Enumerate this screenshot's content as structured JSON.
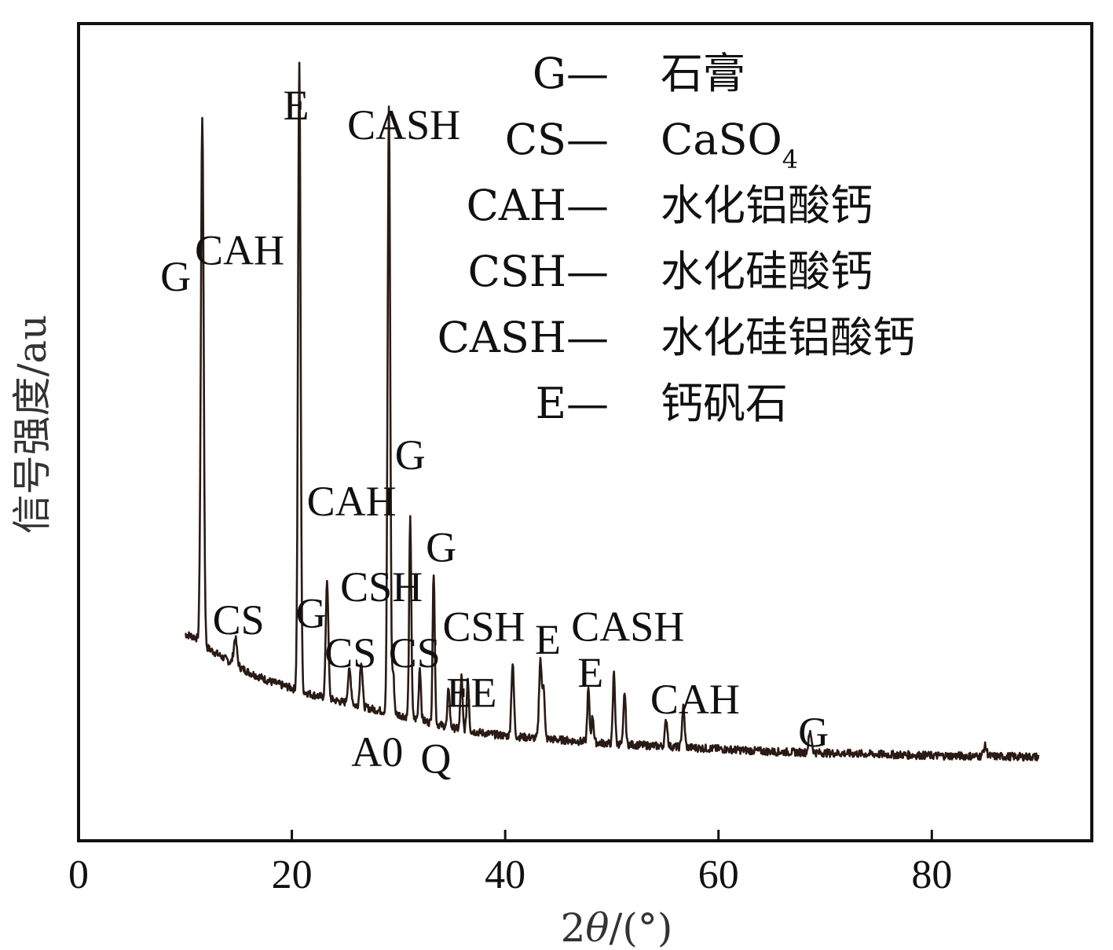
{
  "chart_data": {
    "type": "line",
    "title": "",
    "xlabel_parts": [
      "2",
      "θ",
      "/(°)"
    ],
    "ylabel": "信号强度/au",
    "xlim": [
      0,
      95
    ],
    "xticks": [
      0,
      20,
      40,
      60,
      80
    ],
    "yticks_shown": false,
    "grid": false,
    "line_color": "#2a1a14",
    "baseline": [
      [
        10,
        0.2
      ],
      [
        11,
        0.195
      ],
      [
        12,
        0.18
      ],
      [
        14,
        0.16
      ],
      [
        16,
        0.142
      ],
      [
        18,
        0.128
      ],
      [
        20,
        0.118
      ],
      [
        22,
        0.108
      ],
      [
        24,
        0.1
      ],
      [
        26,
        0.092
      ],
      [
        28,
        0.085
      ],
      [
        30,
        0.078
      ],
      [
        32,
        0.07
      ],
      [
        34,
        0.062
      ],
      [
        36,
        0.055
      ],
      [
        38,
        0.05
      ],
      [
        40,
        0.046
      ],
      [
        45,
        0.04
      ],
      [
        50,
        0.034
      ],
      [
        55,
        0.03
      ],
      [
        60,
        0.026
      ],
      [
        65,
        0.022
      ],
      [
        70,
        0.02
      ],
      [
        75,
        0.018
      ],
      [
        80,
        0.016
      ],
      [
        85,
        0.015
      ],
      [
        90,
        0.014
      ]
    ],
    "peaks": [
      {
        "x": 11.6,
        "h": 0.8,
        "w": 0.13
      },
      {
        "x": 14.7,
        "h": 0.04,
        "w": 0.15
      },
      {
        "x": 20.7,
        "h": 0.95,
        "w": 0.12
      },
      {
        "x": 23.3,
        "h": 0.18,
        "w": 0.12
      },
      {
        "x": 25.4,
        "h": 0.05,
        "w": 0.15
      },
      {
        "x": 26.5,
        "h": 0.07,
        "w": 0.12
      },
      {
        "x": 29.1,
        "h": 0.92,
        "w": 0.12
      },
      {
        "x": 29.5,
        "h": 0.06,
        "w": 0.1
      },
      {
        "x": 31.1,
        "h": 0.3,
        "w": 0.1
      },
      {
        "x": 32.0,
        "h": 0.08,
        "w": 0.1
      },
      {
        "x": 33.3,
        "h": 0.23,
        "w": 0.1
      },
      {
        "x": 34.7,
        "h": 0.06,
        "w": 0.1
      },
      {
        "x": 35.9,
        "h": 0.08,
        "w": 0.1
      },
      {
        "x": 36.5,
        "h": 0.08,
        "w": 0.1
      },
      {
        "x": 40.7,
        "h": 0.11,
        "w": 0.12
      },
      {
        "x": 43.3,
        "h": 0.12,
        "w": 0.12
      },
      {
        "x": 43.6,
        "h": 0.08,
        "w": 0.1
      },
      {
        "x": 47.8,
        "h": 0.08,
        "w": 0.1
      },
      {
        "x": 48.2,
        "h": 0.04,
        "w": 0.1
      },
      {
        "x": 50.2,
        "h": 0.11,
        "w": 0.1
      },
      {
        "x": 51.2,
        "h": 0.08,
        "w": 0.1
      },
      {
        "x": 55.1,
        "h": 0.04,
        "w": 0.12
      },
      {
        "x": 56.7,
        "h": 0.06,
        "w": 0.12
      },
      {
        "x": 68.6,
        "h": 0.03,
        "w": 0.15
      },
      {
        "x": 85.0,
        "h": 0.015,
        "w": 0.15
      }
    ],
    "annotations": [
      {
        "text": "G",
        "x": 9.1,
        "y": 0.72
      },
      {
        "text": "CAH",
        "x": 15.1,
        "y": 0.76
      },
      {
        "text": "E",
        "x": 20.4,
        "y": 0.98
      },
      {
        "text": "CASH",
        "x": 30.5,
        "y": 0.95
      },
      {
        "text": "CS",
        "x": 15.0,
        "y": 0.2
      },
      {
        "text": "G",
        "x": 21.8,
        "y": 0.21
      },
      {
        "text": "CAH",
        "x": 25.6,
        "y": 0.38
      },
      {
        "text": "CSH",
        "x": 28.4,
        "y": 0.25
      },
      {
        "text": "CS",
        "x": 25.5,
        "y": 0.15
      },
      {
        "text": "CS",
        "x": 31.5,
        "y": 0.15
      },
      {
        "text": "G",
        "x": 31.1,
        "y": 0.45
      },
      {
        "text": "G",
        "x": 34.0,
        "y": 0.31
      },
      {
        "text": "CSH",
        "x": 38.0,
        "y": 0.19
      },
      {
        "text": "E",
        "x": 35.7,
        "y": 0.09
      },
      {
        "text": "E",
        "x": 38.0,
        "y": 0.09
      },
      {
        "text": "A0",
        "x": 28.0,
        "y": 0.0
      },
      {
        "text": "Q",
        "x": 33.5,
        "y": -0.01
      },
      {
        "text": "E",
        "x": 44.0,
        "y": 0.17
      },
      {
        "text": "CASH",
        "x": 51.5,
        "y": 0.19
      },
      {
        "text": "E",
        "x": 48.0,
        "y": 0.12
      },
      {
        "text": "CAH",
        "x": 57.8,
        "y": 0.08
      },
      {
        "text": "G",
        "x": 68.9,
        "y": 0.03
      }
    ],
    "legend": [
      {
        "left": "G—",
        "right": "石膏"
      },
      {
        "left": "CS—",
        "right": "CaSO",
        "sub": "4"
      },
      {
        "left": "CAH—",
        "right": "水化铝酸钙"
      },
      {
        "left": "CSH—",
        "right": "水化硅酸钙"
      },
      {
        "left": "CASH—",
        "right": "水化硅铝酸钙"
      },
      {
        "left": "E—",
        "right": "钙矾石"
      }
    ]
  }
}
